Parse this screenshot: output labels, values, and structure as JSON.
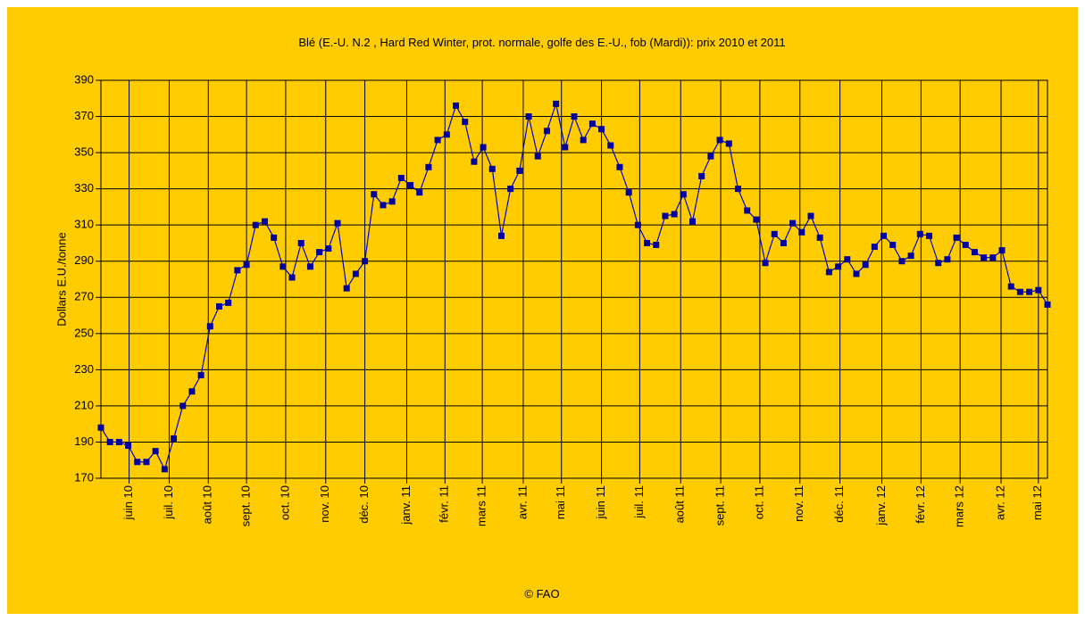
{
  "chart_data": {
    "type": "line",
    "title": "Blé (E.-U. N.2 , Hard Red Winter, prot. normale, golfe des E.-U., fob (Mardi)):  prix 2010 et 2011",
    "ylabel": "Dollars E.U./tonne",
    "footer": "© FAO",
    "background": "#ffcc00",
    "grid": true,
    "x": [
      0,
      1,
      2,
      3,
      4,
      5,
      6,
      7,
      8,
      9,
      10,
      11,
      12,
      13,
      14,
      15,
      16,
      17,
      18,
      19,
      20,
      21,
      22,
      23,
      24,
      25,
      26,
      27,
      28,
      29,
      30,
      31,
      32,
      33,
      34,
      35,
      36,
      37,
      38,
      39,
      40,
      41,
      42,
      43,
      44,
      45,
      46,
      47,
      48,
      49,
      50,
      51,
      52,
      53,
      54,
      55,
      56,
      57,
      58,
      59,
      60,
      61,
      62,
      63,
      64,
      65,
      66,
      67,
      68,
      69,
      70,
      71,
      72,
      73,
      74,
      75,
      76,
      77,
      78,
      79,
      80,
      81,
      82,
      83,
      84,
      85,
      86,
      87,
      88,
      89,
      90,
      91,
      92,
      93,
      94,
      95,
      96,
      97,
      98,
      99,
      100,
      101,
      102,
      103,
      104
    ],
    "series": [
      {
        "name": "Blé",
        "color": "#0000cc",
        "marker_color": "#0000a0",
        "values": [
          198,
          190,
          190,
          188,
          179,
          179,
          185,
          175,
          192,
          210,
          218,
          227,
          254,
          265,
          267,
          285,
          288,
          310,
          312,
          303,
          287,
          281,
          300,
          287,
          295,
          297,
          311,
          275,
          283,
          290,
          327,
          321,
          323,
          336,
          332,
          328,
          342,
          357,
          360,
          376,
          367,
          345,
          353,
          341,
          304,
          330,
          340,
          370,
          348,
          362,
          377,
          353,
          370,
          357,
          366,
          363,
          354,
          342,
          328,
          310,
          300,
          299,
          315,
          316,
          327,
          312,
          337,
          348,
          357,
          355,
          330,
          318,
          313,
          289,
          305,
          300,
          311,
          306,
          315,
          303,
          284,
          287,
          291,
          283,
          288,
          298,
          304,
          299,
          290,
          293,
          305,
          304,
          289,
          291,
          303,
          299,
          295,
          292,
          292,
          296,
          276,
          273,
          273,
          274,
          266
        ]
      }
    ],
    "xlim": [
      0,
      104
    ],
    "xticks": [
      {
        "value": 3.1,
        "label": "juin 10"
      },
      {
        "value": 7.5,
        "label": "juil. 10"
      },
      {
        "value": 11.8,
        "label": "août 10"
      },
      {
        "value": 16.0,
        "label": "sept. 10"
      },
      {
        "value": 20.3,
        "label": "oct. 10"
      },
      {
        "value": 24.7,
        "label": "nov. 10"
      },
      {
        "value": 29.0,
        "label": "déc. 10"
      },
      {
        "value": 33.6,
        "label": "janv. 11"
      },
      {
        "value": 37.8,
        "label": "févr. 11"
      },
      {
        "value": 41.9,
        "label": "mars 11"
      },
      {
        "value": 46.4,
        "label": "avr. 11"
      },
      {
        "value": 50.6,
        "label": "mai 11"
      },
      {
        "value": 55.0,
        "label": "juin 11"
      },
      {
        "value": 59.2,
        "label": "juil. 11"
      },
      {
        "value": 63.7,
        "label": "août 11"
      },
      {
        "value": 68.1,
        "label": "sept. 11"
      },
      {
        "value": 72.4,
        "label": "oct. 11"
      },
      {
        "value": 76.8,
        "label": "nov. 11"
      },
      {
        "value": 81.2,
        "label": "déc. 11"
      },
      {
        "value": 85.8,
        "label": "janv. 12"
      },
      {
        "value": 90.1,
        "label": "févr. 12"
      },
      {
        "value": 94.4,
        "label": "mars 12"
      },
      {
        "value": 98.9,
        "label": "avr. 12"
      },
      {
        "value": 103.0,
        "label": "mai 12"
      }
    ],
    "ylim": [
      170,
      390
    ],
    "yticks": [
      170,
      190,
      210,
      230,
      250,
      270,
      290,
      310,
      330,
      350,
      370,
      390
    ]
  }
}
